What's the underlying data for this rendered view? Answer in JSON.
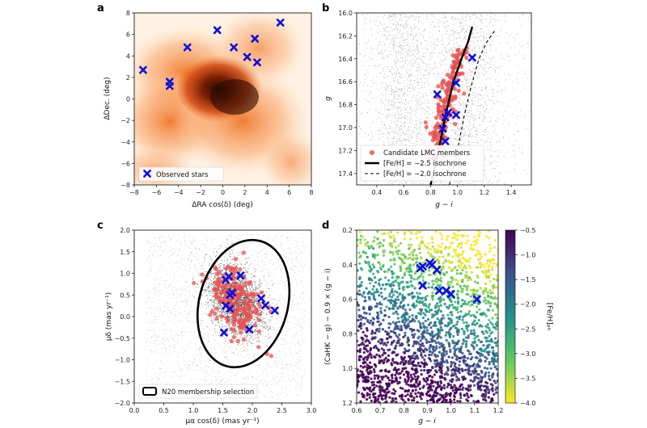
{
  "chart_data": [
    {
      "panel": "a",
      "type": "scatter",
      "background": "LMC stellar density map (orange)",
      "xlabel": "ΔRA cos(δ) (deg)",
      "ylabel": "ΔDec. (deg)",
      "xlim": [
        -8,
        8
      ],
      "ylim": [
        -8,
        8
      ],
      "xticks": [
        -8,
        -6,
        -4,
        -2,
        0,
        2,
        4,
        6,
        8
      ],
      "yticks": [
        -8,
        -6,
        -4,
        -2,
        0,
        2,
        4,
        6,
        8
      ],
      "legend": [
        "Observed stars"
      ],
      "legend_position": "lower-left",
      "series": [
        {
          "name": "Observed stars",
          "color": "#1010d8",
          "marker": "x",
          "points": [
            [
              -7.2,
              2.7
            ],
            [
              -4.8,
              1.6
            ],
            [
              -4.8,
              1.2
            ],
            [
              -3.2,
              4.8
            ],
            [
              -0.5,
              6.4
            ],
            [
              1.0,
              4.8
            ],
            [
              2.2,
              3.9
            ],
            [
              2.9,
              5.6
            ],
            [
              3.1,
              3.4
            ],
            [
              5.2,
              7.1
            ]
          ]
        }
      ]
    },
    {
      "panel": "b",
      "type": "scatter",
      "xlabel": "g − i",
      "ylabel": "g",
      "xlim": [
        0.25,
        1.55
      ],
      "ylim": [
        17.5,
        16.0
      ],
      "xticks": [
        0.4,
        0.6,
        0.8,
        1.0,
        1.2,
        1.4
      ],
      "yticks": [
        16.0,
        16.2,
        16.4,
        16.6,
        16.8,
        17.0,
        17.2,
        17.4
      ],
      "legend": [
        "Candidate LMC members",
        "[Fe/H] = −2.5 isochrone",
        "[Fe/H] = −2.0 isochrone"
      ],
      "legend_position": "lower-left",
      "series": [
        {
          "name": "[Fe/H] = −2.5 isochrone",
          "style": "solid",
          "points": [
            [
              0.8,
              17.5
            ],
            [
              0.86,
              17.2
            ],
            [
              0.91,
              16.9
            ],
            [
              0.97,
              16.6
            ],
            [
              1.03,
              16.4
            ],
            [
              1.08,
              16.25
            ],
            [
              1.11,
              16.12
            ]
          ]
        },
        {
          "name": "[Fe/H] = −2.0 isochrone",
          "style": "dashed",
          "points": [
            [
              0.94,
              17.5
            ],
            [
              1.0,
              17.2
            ],
            [
              1.05,
              16.9
            ],
            [
              1.1,
              16.65
            ],
            [
              1.16,
              16.4
            ],
            [
              1.22,
              16.25
            ],
            [
              1.28,
              16.15
            ]
          ]
        },
        {
          "name": "Observed stars",
          "color": "#1010d8",
          "marker": "x",
          "points": [
            [
              1.11,
              16.39
            ],
            [
              0.85,
              16.71
            ],
            [
              0.99,
              16.61
            ],
            [
              0.93,
              16.87
            ],
            [
              0.99,
              16.89
            ],
            [
              0.91,
              16.91
            ],
            [
              0.91,
              17.12
            ],
            [
              0.89,
              17.01
            ]
          ]
        }
      ]
    },
    {
      "panel": "c",
      "type": "scatter",
      "xlabel": "μα cos(δ) (mas yr⁻¹)",
      "ylabel": "μδ (mas yr⁻¹)",
      "xlim": [
        0,
        3.0
      ],
      "ylim": [
        -2.0,
        2.0
      ],
      "xticks": [
        0,
        0.5,
        1.0,
        1.5,
        2.0,
        2.5,
        3.0
      ],
      "yticks": [
        -2.0,
        -1.5,
        -1.0,
        -0.5,
        0,
        0.5,
        1.0,
        1.5,
        2.0
      ],
      "legend": [
        "N20 membership selection"
      ],
      "legend_position": "lower-left",
      "ellipse": {
        "center": [
          1.85,
          0.3
        ],
        "width": 1.5,
        "height": 3.0,
        "angle_deg": 15
      },
      "series": [
        {
          "name": "Observed stars",
          "color": "#1010d8",
          "marker": "x",
          "points": [
            [
              1.6,
              0.93
            ],
            [
              1.8,
              0.95
            ],
            [
              1.55,
              0.85
            ],
            [
              1.62,
              0.5
            ],
            [
              1.66,
              0.55
            ],
            [
              1.55,
              0.25
            ],
            [
              1.62,
              0.18
            ],
            [
              2.15,
              0.42
            ],
            [
              2.22,
              0.26
            ],
            [
              2.38,
              0.14
            ],
            [
              1.52,
              -0.37
            ],
            [
              1.95,
              -0.3
            ]
          ]
        }
      ]
    },
    {
      "panel": "d",
      "type": "scatter",
      "xlabel": "g − i",
      "ylabel": "(CaHK − g) − 0.9 × (g − i)",
      "xlim": [
        0.6,
        1.2
      ],
      "ylim": [
        1.2,
        0.2
      ],
      "xticks": [
        0.6,
        0.7,
        0.8,
        0.9,
        1.0,
        1.1,
        1.2
      ],
      "yticks": [
        0.2,
        0.4,
        0.6,
        0.8,
        1.0,
        1.2
      ],
      "colorbar": {
        "label": "[Fe/H]ₚₕ",
        "min": -4.0,
        "max": -0.5,
        "ticks": [
          -0.5,
          -1.0,
          -1.5,
          -2.0,
          -2.5,
          -3.0,
          -3.5,
          -4.0
        ]
      },
      "series": [
        {
          "name": "Observed stars",
          "color": "#1010d8",
          "marker": "x",
          "points": [
            [
              0.87,
              0.42
            ],
            [
              0.88,
              0.41
            ],
            [
              0.91,
              0.39
            ],
            [
              0.92,
              0.4
            ],
            [
              0.94,
              0.43
            ],
            [
              0.88,
              0.52
            ],
            [
              0.95,
              0.55
            ],
            [
              0.98,
              0.55
            ],
            [
              1.0,
              0.57
            ],
            [
              1.11,
              0.6
            ]
          ]
        }
      ]
    }
  ],
  "colors": {
    "marker": "#1010d8",
    "candidate": "#e85050",
    "density_dark": "#3a0e02",
    "density_light": "#ffe8d0"
  }
}
